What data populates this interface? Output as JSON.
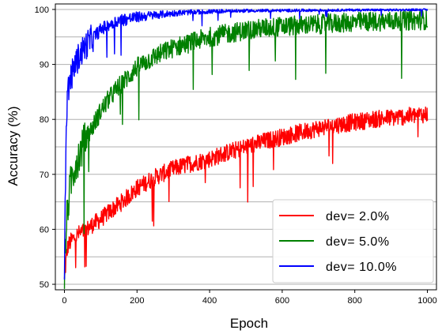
{
  "chart_data": {
    "type": "line",
    "title": "",
    "xlabel": "Epoch",
    "ylabel": "Accuracy (%)",
    "xlim": [
      -25,
      1025
    ],
    "ylim": [
      49,
      101
    ],
    "xticks": [
      0,
      200,
      400,
      600,
      800,
      1000
    ],
    "yticks": [
      50,
      60,
      70,
      80,
      90,
      100
    ],
    "grid": "horizontal",
    "legend_position": "lower-right",
    "series": [
      {
        "name": "dev= 2.0%",
        "color": "#ff0000",
        "x": [
          0,
          5,
          10,
          20,
          30,
          40,
          50,
          60,
          80,
          100,
          120,
          150,
          180,
          200,
          250,
          300,
          350,
          400,
          450,
          500,
          550,
          600,
          650,
          700,
          750,
          800,
          850,
          900,
          950,
          1000
        ],
        "y": [
          50.5,
          55.0,
          57.0,
          58.0,
          58.6,
          59.2,
          59.5,
          59.9,
          61.0,
          61.8,
          63.0,
          64.5,
          66.2,
          67.5,
          69.5,
          71.0,
          72.0,
          72.8,
          74.0,
          75.0,
          76.0,
          76.8,
          77.6,
          78.4,
          79.0,
          79.5,
          80.0,
          80.3,
          80.6,
          81.0
        ]
      },
      {
        "name": "dev= 5.0%",
        "color": "#008000",
        "x": [
          0,
          5,
          10,
          15,
          20,
          30,
          40,
          50,
          60,
          80,
          100,
          120,
          150,
          180,
          200,
          250,
          300,
          350,
          400,
          450,
          500,
          550,
          600,
          650,
          700,
          750,
          800,
          850,
          900,
          950,
          1000
        ],
        "y": [
          51.0,
          60.0,
          64.5,
          67.0,
          69.5,
          72.0,
          73.5,
          75.0,
          76.5,
          79.0,
          81.5,
          83.5,
          86.0,
          88.0,
          89.5,
          91.5,
          93.0,
          94.0,
          95.0,
          95.6,
          96.2,
          96.6,
          96.9,
          97.1,
          97.3,
          97.5,
          97.7,
          97.8,
          97.9,
          98.0,
          98.1
        ]
      },
      {
        "name": "dev= 10.0%",
        "color": "#0000ff",
        "x": [
          0,
          5,
          10,
          15,
          20,
          25,
          30,
          40,
          50,
          60,
          70,
          80,
          100,
          120,
          150,
          200,
          250,
          300,
          350,
          400,
          450,
          500,
          600,
          700,
          800,
          900,
          1000
        ],
        "y": [
          52.0,
          80.0,
          85.5,
          87.0,
          88.0,
          89.0,
          90.0,
          91.5,
          92.5,
          93.5,
          94.3,
          95.0,
          96.3,
          97.2,
          98.0,
          98.6,
          99.0,
          99.3,
          99.5,
          99.6,
          99.7,
          99.75,
          99.8,
          99.85,
          99.9,
          99.9,
          99.95
        ]
      }
    ]
  }
}
